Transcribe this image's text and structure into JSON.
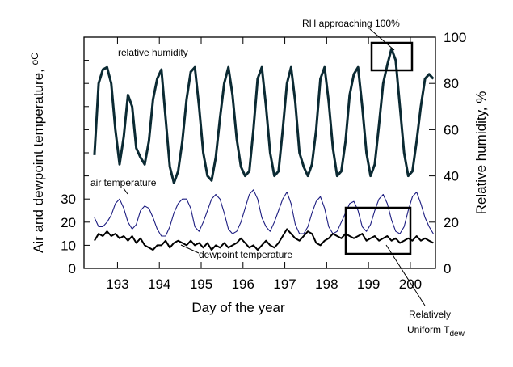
{
  "chart_data": {
    "type": "line",
    "xlabel": "Day of the year",
    "ylabel_left": "Air and dewpoint temperature, ",
    "ylabel_left_unit": "oC",
    "ylabel_right": "Relative humidity, %",
    "xlim": [
      192.2,
      200.6
    ],
    "ylim_left": [
      0,
      100
    ],
    "ylim_right": [
      0,
      100
    ],
    "x_ticks": [
      193,
      194,
      195,
      196,
      197,
      198,
      199,
      200
    ],
    "x_tick_labels": [
      "193",
      "194",
      "195",
      "196",
      "197",
      "198",
      "199",
      "200"
    ],
    "left_ticks": [
      0,
      10,
      20,
      30
    ],
    "left_tick_labels": [
      "0",
      "10",
      "20",
      "30"
    ],
    "right_ticks": [
      0,
      20,
      40,
      60,
      80,
      100
    ],
    "right_tick_labels": [
      "0",
      "20",
      "40",
      "60",
      "80",
      "100"
    ],
    "grid": false,
    "series": [
      {
        "name": "relative humidity",
        "axis": "right",
        "color": "#0b2a33",
        "x": [
          192.45,
          192.55,
          192.65,
          192.75,
          192.85,
          192.95,
          193.05,
          193.15,
          193.25,
          193.35,
          193.45,
          193.55,
          193.65,
          193.75,
          193.85,
          193.95,
          194.05,
          194.15,
          194.25,
          194.35,
          194.45,
          194.55,
          194.65,
          194.75,
          194.85,
          194.95,
          195.05,
          195.15,
          195.25,
          195.35,
          195.45,
          195.55,
          195.65,
          195.75,
          195.85,
          195.95,
          196.05,
          196.15,
          196.25,
          196.35,
          196.45,
          196.55,
          196.65,
          196.75,
          196.85,
          196.95,
          197.05,
          197.15,
          197.25,
          197.35,
          197.45,
          197.55,
          197.65,
          197.75,
          197.85,
          197.95,
          198.05,
          198.15,
          198.25,
          198.35,
          198.45,
          198.55,
          198.65,
          198.75,
          198.85,
          198.95,
          199.05,
          199.15,
          199.25,
          199.35,
          199.45,
          199.55,
          199.65,
          199.75,
          199.85,
          199.95,
          200.05,
          200.15,
          200.25,
          200.35,
          200.45,
          200.55
        ],
        "values": [
          49,
          80,
          86,
          87,
          80,
          60,
          45,
          57,
          75,
          70,
          52,
          48,
          45,
          55,
          73,
          82,
          86,
          65,
          44,
          37,
          42,
          55,
          73,
          85,
          87,
          70,
          50,
          40,
          38,
          48,
          65,
          80,
          87,
          75,
          56,
          44,
          40,
          42,
          60,
          82,
          87,
          70,
          50,
          40,
          42,
          60,
          80,
          87,
          72,
          50,
          44,
          40,
          45,
          60,
          82,
          87,
          72,
          52,
          40,
          42,
          55,
          75,
          84,
          87,
          70,
          50,
          40,
          45,
          62,
          80,
          88,
          95,
          90,
          70,
          50,
          40,
          42,
          55,
          70,
          82,
          84,
          82
        ]
      },
      {
        "name": "air temperature",
        "axis": "left",
        "color": "#1c1c80",
        "x": [
          192.45,
          192.55,
          192.65,
          192.75,
          192.85,
          192.95,
          193.05,
          193.15,
          193.25,
          193.35,
          193.45,
          193.55,
          193.65,
          193.75,
          193.85,
          193.95,
          194.05,
          194.15,
          194.25,
          194.35,
          194.45,
          194.55,
          194.65,
          194.75,
          194.85,
          194.95,
          195.05,
          195.15,
          195.25,
          195.35,
          195.45,
          195.55,
          195.65,
          195.75,
          195.85,
          195.95,
          196.05,
          196.15,
          196.25,
          196.35,
          196.45,
          196.55,
          196.65,
          196.75,
          196.85,
          196.95,
          197.05,
          197.15,
          197.25,
          197.35,
          197.45,
          197.55,
          197.65,
          197.75,
          197.85,
          197.95,
          198.05,
          198.15,
          198.25,
          198.35,
          198.45,
          198.55,
          198.65,
          198.75,
          198.85,
          198.95,
          199.05,
          199.15,
          199.25,
          199.35,
          199.45,
          199.55,
          199.65,
          199.75,
          199.85,
          199.95,
          200.05,
          200.15,
          200.25,
          200.35,
          200.45,
          200.55
        ],
        "values": [
          22,
          18,
          18,
          20,
          23,
          28,
          30,
          26,
          20,
          17,
          19,
          25,
          27,
          26,
          22,
          17,
          14,
          14,
          18,
          24,
          28,
          30,
          30,
          26,
          18,
          16,
          20,
          25,
          30,
          32,
          30,
          24,
          17,
          15,
          16,
          20,
          26,
          32,
          34,
          30,
          22,
          18,
          16,
          20,
          25,
          30,
          33,
          28,
          19,
          15,
          15,
          18,
          24,
          29,
          31,
          26,
          18,
          15,
          16,
          20,
          24,
          28,
          29,
          25,
          18,
          16,
          19,
          25,
          30,
          32,
          28,
          21,
          16,
          15,
          18,
          25,
          31,
          33,
          28,
          22,
          18,
          15
        ]
      },
      {
        "name": "dewpoint temperature",
        "axis": "left",
        "color": "#000000",
        "x": [
          192.45,
          192.55,
          192.65,
          192.75,
          192.85,
          192.95,
          193.05,
          193.15,
          193.25,
          193.35,
          193.45,
          193.55,
          193.65,
          193.75,
          193.85,
          193.95,
          194.05,
          194.15,
          194.25,
          194.35,
          194.45,
          194.55,
          194.65,
          194.75,
          194.85,
          194.95,
          195.05,
          195.15,
          195.25,
          195.35,
          195.45,
          195.55,
          195.65,
          195.75,
          195.85,
          195.95,
          196.05,
          196.15,
          196.25,
          196.35,
          196.45,
          196.55,
          196.65,
          196.75,
          196.85,
          196.95,
          197.05,
          197.15,
          197.25,
          197.35,
          197.45,
          197.55,
          197.65,
          197.75,
          197.85,
          197.95,
          198.05,
          198.15,
          198.25,
          198.35,
          198.45,
          198.55,
          198.65,
          198.75,
          198.85,
          198.95,
          199.05,
          199.15,
          199.25,
          199.35,
          199.45,
          199.55,
          199.65,
          199.75,
          199.85,
          199.95,
          200.05,
          200.15,
          200.25,
          200.35,
          200.45,
          200.55
        ],
        "values": [
          12,
          15,
          14,
          16,
          14,
          15,
          13,
          14,
          12,
          14,
          11,
          13,
          10,
          9,
          8,
          10,
          10,
          12,
          9,
          11,
          12,
          11,
          10,
          12,
          10,
          11,
          9,
          11,
          8,
          10,
          9,
          11,
          9,
          10,
          11,
          13,
          11,
          9,
          10,
          8,
          10,
          12,
          10,
          9,
          11,
          14,
          17,
          15,
          13,
          12,
          14,
          16,
          15,
          11,
          10,
          12,
          13,
          15,
          14,
          13,
          15,
          14,
          13,
          14,
          15,
          12,
          13,
          14,
          12,
          13,
          14,
          12,
          13,
          11,
          12,
          13,
          12,
          14,
          12,
          13,
          12,
          11
        ]
      }
    ]
  },
  "annotations": {
    "rh_label": "relative humidity",
    "air_label": "air temperature",
    "dew_label": "dewpoint temperature",
    "rh100_label": "RH approaching 100%",
    "uniform_line1": "Relatively",
    "uniform_line2": "Uniform T",
    "uniform_sub": "dew"
  }
}
